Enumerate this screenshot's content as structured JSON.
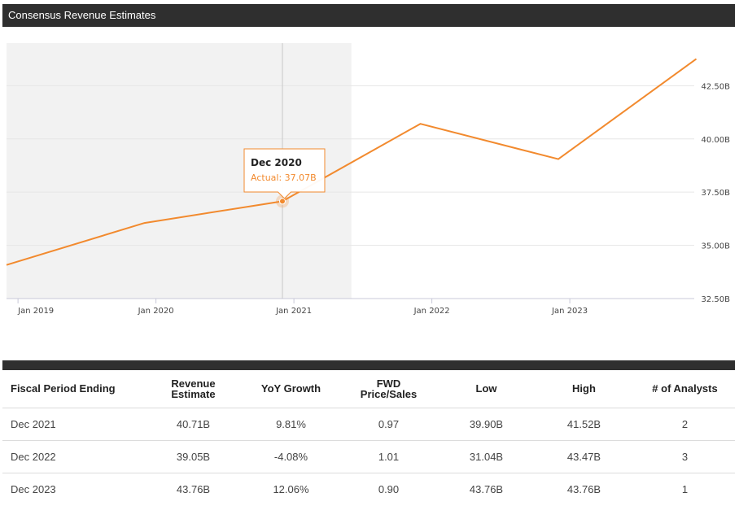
{
  "header": {
    "title": "Consensus Revenue Estimates"
  },
  "chart_data": {
    "type": "line",
    "title": "Consensus Revenue Estimates",
    "x": [
      "Dec 2018",
      "Dec 2019",
      "Dec 2020",
      "Dec 2021",
      "Dec 2022",
      "Dec 2023"
    ],
    "series": [
      {
        "name": "Revenue",
        "values": [
          34.08,
          36.05,
          37.07,
          40.71,
          39.05,
          43.76
        ]
      }
    ],
    "x_tick_labels": [
      "Jan 2019",
      "Jan 2020",
      "Jan 2021",
      "Jan 2022",
      "Jan 2023"
    ],
    "y_tick_labels": [
      "32.50B",
      "35.00B",
      "37.50B",
      "40.00B",
      "42.50B"
    ],
    "y_ticks": [
      32.5,
      35.0,
      37.5,
      40.0,
      42.5
    ],
    "ylim": [
      32.5,
      44.5
    ],
    "actual_region_end": "Jun 2021",
    "tooltip": {
      "title": "Dec 2020",
      "label": "Actual: 37.07B",
      "point_index": 2
    },
    "colors": {
      "line": "#f28a2e",
      "actual_shade": "#f2f2f2",
      "grid": "#e6e6e6"
    }
  },
  "table": {
    "headers": [
      [
        "Fiscal Period Ending"
      ],
      [
        "Revenue",
        "Estimate"
      ],
      [
        "YoY Growth"
      ],
      [
        "FWD",
        "Price/Sales"
      ],
      [
        "Low"
      ],
      [
        "High"
      ],
      [
        "# of Analysts"
      ]
    ],
    "rows": [
      [
        "Dec 2021",
        "40.71B",
        "9.81%",
        "0.97",
        "39.90B",
        "41.52B",
        "2"
      ],
      [
        "Dec 2022",
        "39.05B",
        "-4.08%",
        "1.01",
        "31.04B",
        "43.47B",
        "3"
      ],
      [
        "Dec 2023",
        "43.76B",
        "12.06%",
        "0.90",
        "43.76B",
        "43.76B",
        "1"
      ]
    ]
  }
}
